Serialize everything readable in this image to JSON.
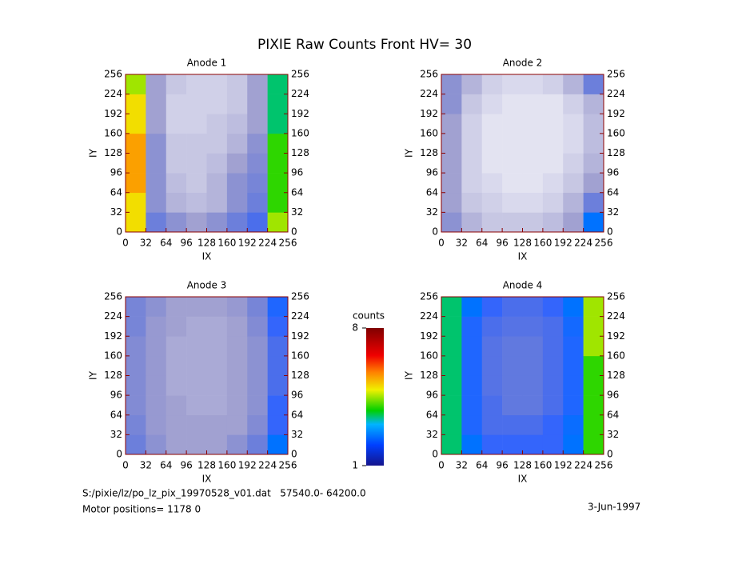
{
  "title": "PIXIE Raw Counts Front HV= 30",
  "chart_data": [
    {
      "type": "heatmap",
      "title": "Anode 1",
      "xlabel": "IX",
      "ylabel": "IY",
      "xlim": [
        0,
        256
      ],
      "ylim": [
        0,
        256
      ],
      "xticks": [
        0,
        32,
        64,
        96,
        128,
        160,
        192,
        224,
        256
      ],
      "yticks": [
        0,
        32,
        64,
        96,
        128,
        160,
        192,
        224,
        256
      ],
      "z": [
        [
          5,
          1.5,
          1.2,
          1,
          1.2,
          1.5,
          1.8,
          4.5
        ],
        [
          5,
          1.2,
          0.8,
          0.7,
          0.8,
          1.2,
          1.5,
          4
        ],
        [
          5.5,
          1.2,
          0.7,
          0.6,
          0.8,
          1.2,
          1.4,
          4
        ],
        [
          5.5,
          1.2,
          0.6,
          0.6,
          0.7,
          1,
          1.3,
          4
        ],
        [
          5.5,
          1.2,
          0.6,
          0.6,
          0.6,
          0.8,
          1.2,
          4
        ],
        [
          5,
          1,
          0.5,
          0.5,
          0.6,
          0.7,
          1,
          3.5
        ],
        [
          5,
          1,
          0.5,
          0.5,
          0.5,
          0.6,
          1,
          3.5
        ],
        [
          4.5,
          1,
          0.6,
          0.5,
          0.5,
          0.6,
          1,
          3.5
        ]
      ]
    },
    {
      "type": "heatmap",
      "title": "Anode 2",
      "xlabel": "IX",
      "ylabel": "IY",
      "xlim": [
        0,
        256
      ],
      "ylim": [
        0,
        256
      ],
      "xticks": [
        0,
        32,
        64,
        96,
        128,
        160,
        192,
        224,
        256
      ],
      "yticks": [
        0,
        32,
        64,
        96,
        128,
        160,
        192,
        224,
        256
      ],
      "z": [
        [
          1.2,
          0.8,
          0.6,
          0.6,
          0.6,
          0.7,
          1,
          2.5
        ],
        [
          1,
          0.6,
          0.5,
          0.4,
          0.4,
          0.5,
          0.8,
          1.5
        ],
        [
          1,
          0.5,
          0.4,
          0.3,
          0.3,
          0.4,
          0.6,
          1
        ],
        [
          1,
          0.5,
          0.3,
          0.3,
          0.3,
          0.3,
          0.5,
          0.8
        ],
        [
          1,
          0.5,
          0.3,
          0.3,
          0.3,
          0.3,
          0.4,
          0.7
        ],
        [
          1,
          0.5,
          0.3,
          0.3,
          0.3,
          0.3,
          0.4,
          0.7
        ],
        [
          1.2,
          0.6,
          0.4,
          0.3,
          0.3,
          0.3,
          0.5,
          0.8
        ],
        [
          1.2,
          0.8,
          0.5,
          0.4,
          0.4,
          0.5,
          0.8,
          1.5
        ]
      ]
    },
    {
      "type": "heatmap",
      "title": "Anode 3",
      "xlabel": "IX",
      "ylabel": "IY",
      "xlim": [
        0,
        256
      ],
      "ylim": [
        0,
        256
      ],
      "xticks": [
        0,
        32,
        64,
        96,
        128,
        160,
        192,
        224,
        256
      ],
      "yticks": [
        0,
        32,
        64,
        96,
        128,
        160,
        192,
        224,
        256
      ],
      "z": [
        [
          1.5,
          1.2,
          1,
          1,
          1,
          1.2,
          1.5,
          2.5
        ],
        [
          1.4,
          1.1,
          1,
          1,
          1,
          1,
          1.3,
          2
        ],
        [
          1.3,
          1.1,
          1,
          0.9,
          0.9,
          1,
          1.2,
          2
        ],
        [
          1.3,
          1.1,
          0.9,
          0.9,
          0.9,
          1,
          1.2,
          1.8
        ],
        [
          1.3,
          1.1,
          0.9,
          0.9,
          0.9,
          1,
          1.2,
          1.8
        ],
        [
          1.3,
          1.1,
          0.9,
          0.9,
          0.9,
          1,
          1.2,
          1.8
        ],
        [
          1.4,
          1.1,
          1,
          0.9,
          0.9,
          1,
          1.3,
          2
        ],
        [
          1.4,
          1.2,
          1,
          1,
          1,
          1.1,
          1.4,
          2.2
        ]
      ]
    },
    {
      "type": "heatmap",
      "title": "Anode 4",
      "xlabel": "IX",
      "ylabel": "IY",
      "xlim": [
        0,
        256
      ],
      "ylim": [
        0,
        256
      ],
      "xticks": [
        0,
        32,
        64,
        96,
        128,
        160,
        192,
        224,
        256
      ],
      "yticks": [
        0,
        32,
        64,
        96,
        128,
        160,
        192,
        224,
        256
      ],
      "z": [
        [
          3.5,
          2.5,
          2,
          2,
          2,
          2,
          2.5,
          4
        ],
        [
          3.5,
          2.2,
          1.8,
          1.8,
          1.8,
          2,
          2.4,
          4
        ],
        [
          3.5,
          2.2,
          1.8,
          1.6,
          1.6,
          1.8,
          2.2,
          4
        ],
        [
          3.5,
          2.2,
          1.7,
          1.6,
          1.6,
          1.8,
          2.2,
          4
        ],
        [
          3.5,
          2.2,
          1.7,
          1.6,
          1.6,
          1.8,
          2.2,
          4
        ],
        [
          3.5,
          2.2,
          1.7,
          1.6,
          1.6,
          1.8,
          2.2,
          4.5
        ],
        [
          3.5,
          2.2,
          1.8,
          1.7,
          1.7,
          1.8,
          2.3,
          4.5
        ],
        [
          3.5,
          2.5,
          2,
          1.8,
          1.8,
          2,
          2.5,
          4.5
        ]
      ]
    }
  ],
  "colorbar": {
    "label": "counts",
    "zlim": [
      1,
      8
    ],
    "ticks": [
      1,
      8
    ]
  },
  "footer": {
    "file": "S:/pixie/lz/po_lz_pix_19970528_v01.dat   57540.0- 64200.0",
    "motor": "Motor positions= 1178 0",
    "date": "3-Jun-1997"
  }
}
